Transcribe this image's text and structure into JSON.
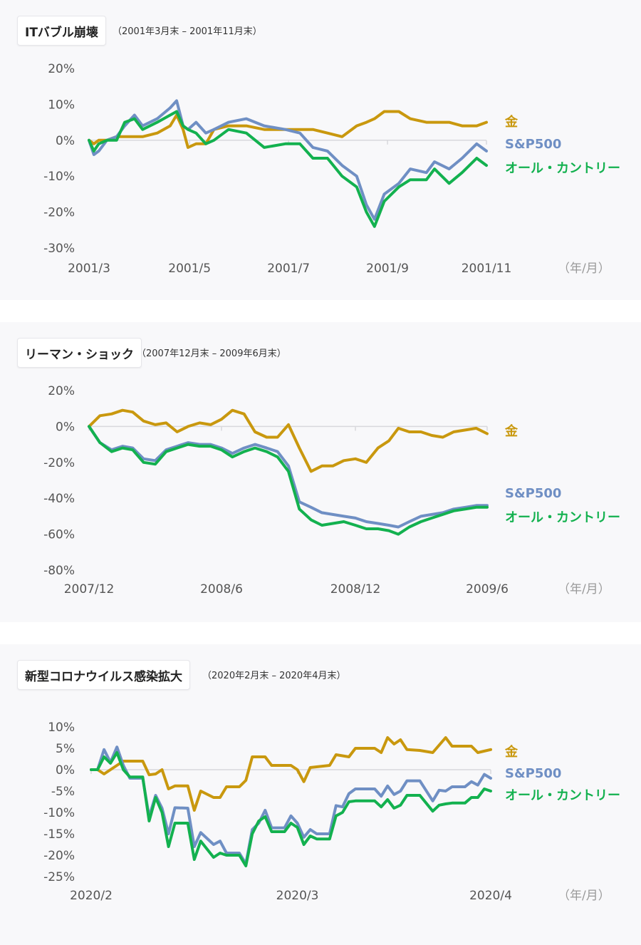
{
  "colors": {
    "gold": "#c9980e",
    "sp500": "#6f8fc4",
    "all_country": "#13b14f",
    "zero_line": "#d8d8dc"
  },
  "chart_data": [
    {
      "type": "line",
      "title": "ITバブル崩壊",
      "subtitle": "（2001年3月末 – 2001年11月末）",
      "ylim": [
        -30,
        20
      ],
      "yticks": [
        20,
        10,
        0,
        -10,
        -20,
        -30
      ],
      "ytick_labels": [
        "20%",
        "10%",
        "0%",
        "-10%",
        "-20%",
        "-30%"
      ],
      "xlim": [
        "2001-03-30",
        "2001-11-30"
      ],
      "xticks": [
        "2001-03-30",
        "2001-05-31",
        "2001-07-31",
        "2001-09-30",
        "2001-11-30"
      ],
      "xtick_labels": [
        "2001/3",
        "2001/5",
        "2001/7",
        "2001/9",
        "2001/11"
      ],
      "x_unit": "（年/月）",
      "legend_placement": "right",
      "x": [
        "2001-03-30",
        "2001-04-02",
        "2001-04-05",
        "2001-04-10",
        "2001-04-16",
        "2001-04-21",
        "2001-04-27",
        "2001-05-02",
        "2001-05-11",
        "2001-05-19",
        "2001-05-23",
        "2001-05-27",
        "2001-05-30",
        "2001-06-04",
        "2001-06-10",
        "2001-06-15",
        "2001-06-24",
        "2001-07-05",
        "2001-07-16",
        "2001-07-29",
        "2001-08-07",
        "2001-08-15",
        "2001-08-24",
        "2001-09-02",
        "2001-09-11",
        "2001-09-17",
        "2001-09-22",
        "2001-09-28",
        "2001-10-07",
        "2001-10-14",
        "2001-10-24",
        "2001-10-29",
        "2001-11-07",
        "2001-11-15",
        "2001-11-24",
        "2001-11-30"
      ],
      "series": [
        {
          "name": "金",
          "color": "#c9980e",
          "values": [
            0,
            -1,
            0,
            0,
            1,
            1,
            1,
            1,
            2,
            4,
            7,
            3,
            -2,
            -1,
            -1,
            3,
            4,
            4,
            3,
            3,
            3,
            3,
            2,
            1,
            4,
            5,
            6,
            8,
            8,
            6,
            5,
            5,
            5,
            4,
            4,
            5
          ]
        },
        {
          "name": "S&P500",
          "color": "#6f8fc4",
          "values": [
            0,
            -4,
            -3,
            0,
            1,
            4,
            7,
            4,
            6,
            9,
            11,
            4,
            3,
            5,
            2,
            3,
            5,
            6,
            4,
            3,
            2,
            -2,
            -3,
            -7,
            -10,
            -18,
            -22,
            -15,
            -12,
            -8,
            -9,
            -6,
            -8,
            -5,
            -1,
            -3
          ]
        },
        {
          "name": "オール・カントリー",
          "color": "#13b14f",
          "values": [
            0,
            -3,
            -1,
            0,
            0,
            5,
            6,
            3,
            5,
            7,
            8,
            4,
            3,
            2,
            -1,
            0,
            3,
            2,
            -2,
            -1,
            -1,
            -5,
            -5,
            -10,
            -13,
            -20,
            -24,
            -17,
            -13,
            -11,
            -11,
            -8,
            -12,
            -9,
            -5,
            -7
          ]
        }
      ]
    },
    {
      "type": "line",
      "title": "リーマン・ショック",
      "subtitle": "（2007年12月末 – 2009年6月末）",
      "ylim": [
        -80,
        20
      ],
      "yticks": [
        20,
        0,
        -20,
        -40,
        -60,
        -80
      ],
      "ytick_labels": [
        "20%",
        "0%",
        "-20%",
        "-40%",
        "-60%",
        "-80%"
      ],
      "xlim": [
        "2007-12-31",
        "2009-06-30"
      ],
      "xticks": [
        "2007-12-31",
        "2008-06-30",
        "2008-12-31",
        "2009-06-30"
      ],
      "xtick_labels": [
        "2007/12",
        "2008/6",
        "2008/12",
        "2009/6"
      ],
      "x_unit": "（年/月）",
      "legend_placement": "right",
      "x": [
        "2007-12-31",
        "2008-01-15",
        "2008-01-31",
        "2008-02-15",
        "2008-02-29",
        "2008-03-15",
        "2008-03-31",
        "2008-04-15",
        "2008-04-30",
        "2008-05-15",
        "2008-05-31",
        "2008-06-15",
        "2008-06-30",
        "2008-07-15",
        "2008-07-31",
        "2008-08-15",
        "2008-08-31",
        "2008-09-15",
        "2008-09-30",
        "2008-10-15",
        "2008-10-31",
        "2008-11-15",
        "2008-11-30",
        "2008-12-15",
        "2008-12-31",
        "2009-01-15",
        "2009-01-31",
        "2009-02-15",
        "2009-02-28",
        "2009-03-15",
        "2009-03-31",
        "2009-04-15",
        "2009-04-30",
        "2009-05-15",
        "2009-05-31",
        "2009-06-15",
        "2009-06-30"
      ],
      "series": [
        {
          "name": "金",
          "color": "#c9980e",
          "values": [
            0,
            6,
            7,
            9,
            8,
            3,
            1,
            2,
            -3,
            0,
            2,
            1,
            4,
            9,
            7,
            -3,
            -6,
            -6,
            1,
            -12,
            -25,
            -22,
            -22,
            -19,
            -18,
            -20,
            -12,
            -8,
            -1,
            -3,
            -3,
            -5,
            -6,
            -3,
            -2,
            -1,
            -4
          ]
        },
        {
          "name": "S&P500",
          "color": "#6f8fc4",
          "values": [
            0,
            -9,
            -13,
            -11,
            -12,
            -18,
            -19,
            -13,
            -11,
            -9,
            -10,
            -10,
            -12,
            -15,
            -12,
            -10,
            -12,
            -14,
            -22,
            -42,
            -45,
            -48,
            -49,
            -50,
            -51,
            -53,
            -54,
            -55,
            -56,
            -53,
            -50,
            -49,
            -48,
            -46,
            -45,
            -44,
            -44
          ]
        },
        {
          "name": "オール・カントリー",
          "color": "#13b14f",
          "values": [
            0,
            -9,
            -14,
            -12,
            -13,
            -20,
            -21,
            -14,
            -12,
            -10,
            -11,
            -11,
            -13,
            -17,
            -14,
            -12,
            -14,
            -17,
            -25,
            -46,
            -52,
            -55,
            -54,
            -53,
            -55,
            -57,
            -57,
            -58,
            -60,
            -56,
            -53,
            -51,
            -49,
            -47,
            -46,
            -45,
            -45
          ]
        }
      ]
    },
    {
      "type": "line",
      "title": "新型コロナウイルス感染拡大",
      "subtitle": "（2020年2月末 – 2020年4月末）",
      "ylim": [
        -25,
        10
      ],
      "yticks": [
        10,
        5,
        0,
        -5,
        -10,
        -15,
        -20,
        -25
      ],
      "ytick_labels": [
        "10%",
        "5%",
        "0%",
        "-5%",
        "-10%",
        "-15%",
        "-20%",
        "-25%"
      ],
      "xlim": [
        "2020-02-28",
        "2020-04-30"
      ],
      "xticks": [
        "2020-02-28",
        "2020-03-31",
        "2020-04-30"
      ],
      "xtick_labels": [
        "2020/2",
        "2020/3",
        "2020/4"
      ],
      "x_unit": "（年/月）",
      "legend_placement": "right",
      "x": [
        "2020-02-28",
        "2020-02-29",
        "2020-03-01",
        "2020-03-02",
        "2020-03-03",
        "2020-03-04",
        "2020-03-05",
        "2020-03-07",
        "2020-03-08",
        "2020-03-09",
        "2020-03-10",
        "2020-03-11",
        "2020-03-12",
        "2020-03-14",
        "2020-03-15",
        "2020-03-16",
        "2020-03-18",
        "2020-03-19",
        "2020-03-20",
        "2020-03-22",
        "2020-03-23",
        "2020-03-24",
        "2020-03-25",
        "2020-03-26",
        "2020-03-27",
        "2020-03-29",
        "2020-03-30",
        "2020-03-31",
        "2020-04-01",
        "2020-04-02",
        "2020-04-03",
        "2020-04-05",
        "2020-04-06",
        "2020-04-07",
        "2020-04-08",
        "2020-04-09",
        "2020-04-12",
        "2020-04-13",
        "2020-04-14",
        "2020-04-15",
        "2020-04-16",
        "2020-04-17",
        "2020-04-19",
        "2020-04-21",
        "2020-04-22",
        "2020-04-23",
        "2020-04-24",
        "2020-04-26",
        "2020-04-27",
        "2020-04-28",
        "2020-04-29",
        "2020-04-30"
      ],
      "series": [
        {
          "name": "金",
          "color": "#c9980e",
          "points": [
            [
              "2020-02-28",
              0
            ],
            [
              "2020-02-29",
              0
            ],
            [
              "2020-03-01",
              -1
            ],
            [
              "2020-03-02",
              0
            ],
            [
              "2020-03-04",
              2
            ],
            [
              "2020-03-07",
              2
            ],
            [
              "2020-03-08",
              -1.2
            ],
            [
              "2020-03-09",
              -1
            ],
            [
              "2020-03-10",
              0
            ],
            [
              "2020-03-11",
              -4.5
            ],
            [
              "2020-03-12",
              -3.8
            ],
            [
              "2020-03-14",
              -3.8
            ],
            [
              "2020-03-15",
              -9.5
            ],
            [
              "2020-03-16",
              -5
            ],
            [
              "2020-03-18",
              -6.5
            ],
            [
              "2020-03-19",
              -6.5
            ],
            [
              "2020-03-20",
              -4
            ],
            [
              "2020-03-22",
              -4
            ],
            [
              "2020-03-23",
              -2.5
            ],
            [
              "2020-03-24",
              3
            ],
            [
              "2020-03-26",
              3
            ],
            [
              "2020-03-27",
              1
            ],
            [
              "2020-03-30",
              1
            ],
            [
              "2020-03-31",
              0
            ],
            [
              "2020-04-01",
              -2.8
            ],
            [
              "2020-04-02",
              0.5
            ],
            [
              "2020-04-05",
              1
            ],
            [
              "2020-04-06",
              3.5
            ],
            [
              "2020-04-08",
              3
            ],
            [
              "2020-04-09",
              5
            ],
            [
              "2020-04-12",
              5
            ],
            [
              "2020-04-13",
              4
            ],
            [
              "2020-04-14",
              7.5
            ],
            [
              "2020-04-15",
              6
            ],
            [
              "2020-04-16",
              7
            ],
            [
              "2020-04-17",
              4.7
            ],
            [
              "2020-04-19",
              4.5
            ],
            [
              "2020-04-21",
              4
            ],
            [
              "2020-04-23",
              7.5
            ],
            [
              "2020-04-24",
              5.5
            ],
            [
              "2020-04-27",
              5.5
            ],
            [
              "2020-04-28",
              4
            ],
            [
              "2020-04-30",
              4.7
            ]
          ]
        },
        {
          "name": "S&P500",
          "color": "#6f8fc4",
          "values": [
            0,
            0,
            4.7,
            1.7,
            5.3,
            1,
            -2,
            -2,
            -11,
            -6,
            -9,
            -15,
            -8.9,
            -9,
            -18,
            -14.7,
            -17.5,
            -16.7,
            -19.5,
            -19.5,
            -22,
            -14,
            -12.5,
            -9.5,
            -13.6,
            -13.6,
            -10.8,
            -12.5,
            -15.8,
            -14,
            -15,
            -15,
            -8.4,
            -8.7,
            -5.6,
            -4.5,
            -4.5,
            -6.2,
            -3.8,
            -5.8,
            -5,
            -2.6,
            -2.6,
            -7.3,
            -4.8,
            -5,
            -4,
            -4,
            -2.8,
            -3.6,
            -1.1,
            -2
          ]
        },
        {
          "name": "オール・カントリー",
          "color": "#13b14f",
          "values": [
            0,
            0,
            3,
            1.5,
            4,
            0,
            -1.7,
            -1.7,
            -12,
            -6.5,
            -10,
            -18,
            -12.5,
            -12.5,
            -21,
            -16.7,
            -20.5,
            -19.5,
            -20,
            -20,
            -22.5,
            -15,
            -12,
            -11,
            -14.5,
            -14.5,
            -12.5,
            -13.5,
            -17.5,
            -15.5,
            -16.2,
            -16.2,
            -10.8,
            -10,
            -7.5,
            -7.3,
            -7.3,
            -8.7,
            -7,
            -9,
            -8.3,
            -6,
            -6,
            -9.7,
            -8.3,
            -8,
            -7.8,
            -7.8,
            -6.5,
            -6.5,
            -4.5,
            -5
          ]
        }
      ]
    }
  ]
}
